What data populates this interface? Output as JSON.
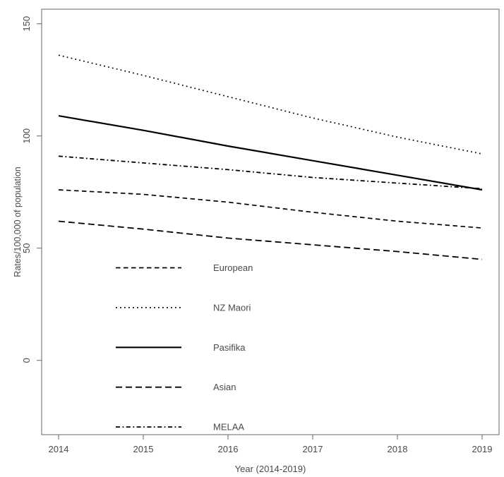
{
  "figure": {
    "background": "#ffffff",
    "axis_color": "#666666",
    "text_color": "#4a4a4a",
    "series_color": "#000000"
  },
  "chart_data": {
    "type": "line",
    "title": "",
    "xlabel": "Year (2014-2019)",
    "ylabel": "Rates/100,000 of population",
    "x": [
      2014,
      2015,
      2016,
      2017,
      2018,
      2019
    ],
    "x_tick_labels": [
      "2014",
      "2015",
      "2016",
      "2017",
      "2018",
      "2019"
    ],
    "y_ticks": [
      0,
      50,
      100,
      150
    ],
    "y_tick_labels": [
      "0",
      "50",
      "100",
      "150"
    ],
    "xlim": [
      2013.8,
      2019.2
    ],
    "ylim": [
      -33.1,
      156.5
    ],
    "grid": false,
    "legend_position": "inside-lower-left",
    "series": [
      {
        "name": "European",
        "linestyle": "dashed",
        "dash": "6.5,4.5",
        "width": 1.7,
        "values": [
          76,
          74,
          70.5,
          66,
          62,
          59
        ]
      },
      {
        "name": "NZ Maori",
        "linestyle": "dotted",
        "dash": "1.8,4.2",
        "width": 1.7,
        "values": [
          136,
          127,
          117.5,
          108,
          99.5,
          92
        ]
      },
      {
        "name": "Pasifika",
        "linestyle": "solid",
        "dash": "",
        "width": 2.2,
        "values": [
          109,
          102.5,
          95.5,
          89,
          82.5,
          76
        ]
      },
      {
        "name": "Asian",
        "linestyle": "longdash",
        "dash": "9,5",
        "width": 1.8,
        "values": [
          62,
          58.5,
          54.5,
          51.5,
          48.5,
          45
        ]
      },
      {
        "name": "MELAA",
        "linestyle": "dashdot",
        "dash": "6,3.5,1.8,3.5",
        "width": 1.8,
        "values": [
          91,
          88,
          85,
          81.5,
          79,
          76.5
        ]
      }
    ]
  }
}
